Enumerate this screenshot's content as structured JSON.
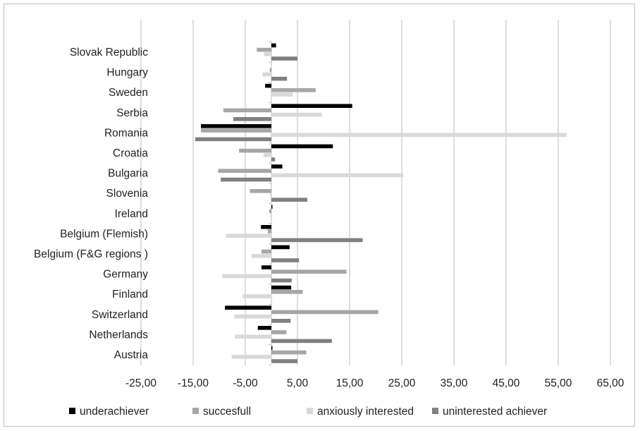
{
  "chart_data": {
    "type": "bar",
    "orientation": "horizontal",
    "title": "",
    "xlabel": "",
    "ylabel": "",
    "xlim": [
      -25,
      65
    ],
    "x_ticks": [
      "-25,00",
      "-15,00",
      "-5,00",
      "5,00",
      "15,00",
      "25,00",
      "35,00",
      "45,00",
      "55,00",
      "65,00"
    ],
    "grid": "vertical",
    "legend_position": "bottom",
    "categories": [
      "Slovak Republic",
      "Hungary",
      "Sweden",
      "Serbia",
      "Romania",
      "Croatia",
      "Bulgaria",
      "Slovenia",
      "Ireland",
      "Belgium  (Flemish)",
      "Belgium (F&G regions )",
      "Germany",
      "Finland",
      "Switzerland",
      "Netherlands",
      "Austria"
    ],
    "series": [
      {
        "name": "underachiever",
        "color": "#000000",
        "values": [
          0.9,
          0.0,
          -1.2,
          15.5,
          -13.5,
          11.8,
          2.1,
          0.0,
          0.2,
          -2.0,
          3.5,
          -1.9,
          3.8,
          -8.9,
          -2.6,
          0.2
        ]
      },
      {
        "name": "succesfull",
        "color": "#a6a6a6",
        "values": [
          -2.8,
          -0.3,
          8.5,
          -9.2,
          -13.5,
          -6.2,
          -10.2,
          -4.1,
          -0.4,
          -0.7,
          -1.9,
          14.4,
          6.0,
          20.5,
          2.9,
          6.7
        ]
      },
      {
        "name": "anxiously interested",
        "color": "#d9d9d9",
        "values": [
          -1.4,
          -1.7,
          4.1,
          9.7,
          56.6,
          -1.5,
          25.3,
          -0.2,
          -0.2,
          -8.7,
          -3.8,
          -9.4,
          -5.5,
          -7.1,
          -7.0,
          -7.6
        ]
      },
      {
        "name": "uninterested achiever",
        "color": "#808080",
        "values": [
          5.0,
          3.0,
          0.0,
          -7.3,
          -14.6,
          0.7,
          -9.7,
          6.9,
          0.0,
          17.5,
          5.3,
          3.9,
          0.0,
          3.7,
          11.6,
          5.0
        ]
      }
    ]
  }
}
